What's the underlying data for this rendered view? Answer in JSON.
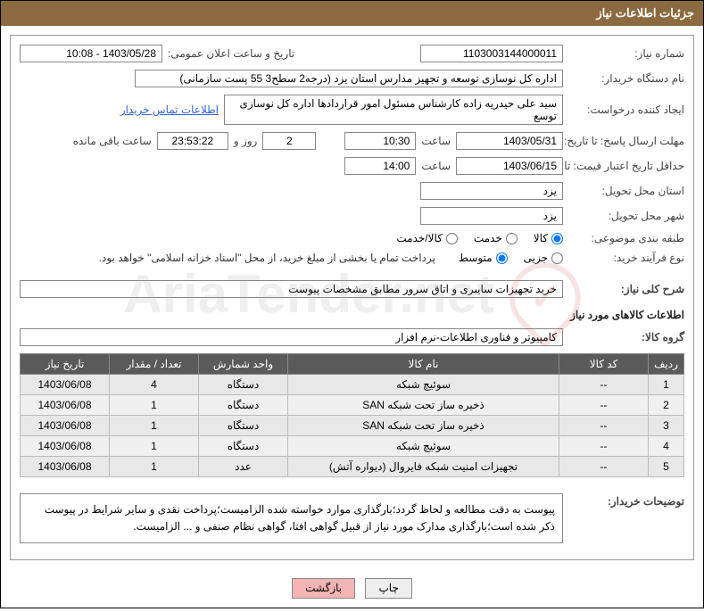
{
  "header": {
    "title": "جزئیات اطلاعات نیاز"
  },
  "fields": {
    "need_no_label": "شماره نیاز:",
    "need_no": "1103003144000011",
    "announce_date_label": "تاریخ و ساعت اعلان عمومی:",
    "announce_date": "1403/05/28 - 10:08",
    "buyer_org_label": "نام دستگاه خریدار:",
    "buyer_org": "اداره کل نوسازی   توسعه و تجهیز مدارس استان یزد (درجه2  سطح3  55 پست سازمانی)",
    "requester_label": "ایجاد کننده درخواست:",
    "requester": "سید علی حیدریه زاده کارشناس مسئول امور قراردادها اداره کل نوسازی   توسع",
    "contact_link": "اطلاعات تماس خریدار",
    "deadline_label": "مهلت ارسال پاسخ: تا تاریخ:",
    "deadline_date": "1403/05/31",
    "time_label": "ساعت",
    "deadline_time": "10:30",
    "days": "2",
    "days_and": "روز و",
    "countdown": "23:53:22",
    "remaining": "ساعت باقی مانده",
    "validity_label": "حداقل تاریخ اعتبار قیمت: تا تاریخ:",
    "validity_date": "1403/06/15",
    "validity_time": "14:00",
    "province_label": "استان محل تحویل:",
    "province": "یزد",
    "city_label": "شهر محل تحویل:",
    "city": "یزد",
    "category_label": "طبقه بندی موضوعی:",
    "cat_kala": "کالا",
    "cat_khadamat": "خدمت",
    "cat_kalakhadamat": "کالا/خدمت",
    "process_label": "نوع فرآیند خرید:",
    "proc_partial": "جزیی",
    "proc_medium": "متوسط",
    "process_note": "پرداخت تمام یا بخشی از مبلغ خرید، از محل \"اسناد خزانه اسلامی\" خواهد بود.",
    "summary_label": "شرح کلی نیاز:",
    "summary": "خرید تجهیزات سایبری و اتاق سرور مطابق مشخصات پیوست",
    "goods_info_title": "اطلاعات کالاهای مورد نیاز",
    "group_label": "گروه کالا:",
    "group": "کامپیوتر و فناوری اطلاعات-نرم افزار",
    "buyer_notes_label": "توضیحات خریدار:",
    "buyer_notes": "پیوست به دقت مطالعه و لحاظ گردد؛بارگذاری موارد خواسته شده الزامیست؛پرداخت نقدی و سایر شرایط در پیوست ذکر شده است؛بارگذاری مدارک مورد نیاز از قبیل گواهی افتا، گواهی نظام صنفی و ... الزامیست."
  },
  "table": {
    "columns": [
      "ردیف",
      "کد کالا",
      "نام کالا",
      "واحد شمارش",
      "تعداد / مقدار",
      "تاریخ نیاز"
    ],
    "rows": [
      [
        "1",
        "--",
        "سوئیچ شبکه",
        "دستگاه",
        "4",
        "1403/06/08"
      ],
      [
        "2",
        "--",
        "ذخیره ساز تحت شبکه SAN",
        "دستگاه",
        "1",
        "1403/06/08"
      ],
      [
        "3",
        "--",
        "ذخیره ساز تحت شبکه SAN",
        "دستگاه",
        "1",
        "1403/06/08"
      ],
      [
        "4",
        "--",
        "سوئیچ شبکه",
        "دستگاه",
        "1",
        "1403/06/08"
      ],
      [
        "5",
        "--",
        "تجهیزات امنیت شبکه فایروال (دیواره آتش)",
        "عدد",
        "1",
        "1403/06/08"
      ]
    ]
  },
  "buttons": {
    "print": "چاپ",
    "back": "بازگشت"
  },
  "watermark": "AriaTender.net"
}
